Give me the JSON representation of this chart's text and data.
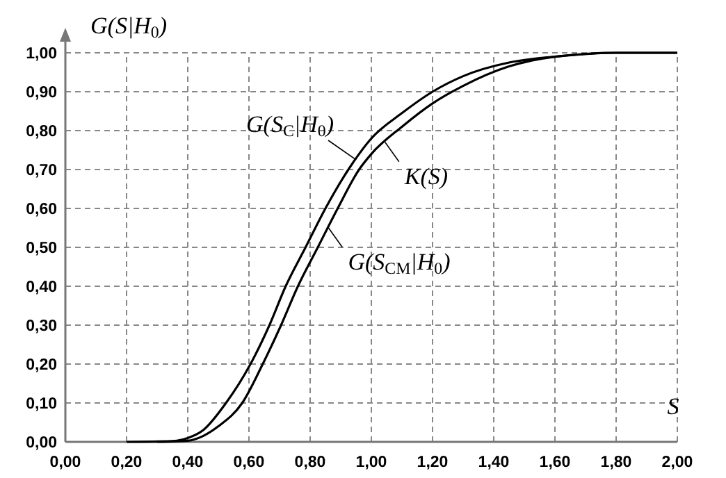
{
  "chart_data": {
    "type": "line",
    "xlabel": "S",
    "ylabel": "G(S|H$_{0}$)",
    "xlim": [
      0,
      2
    ],
    "ylim": [
      0,
      1
    ],
    "xticks": [
      {
        "value": 0,
        "label": "0,00"
      },
      {
        "value": 0.2,
        "label": "0,20"
      },
      {
        "value": 0.4,
        "label": "0,40"
      },
      {
        "value": 0.6,
        "label": "0,60"
      },
      {
        "value": 0.8,
        "label": "0,80"
      },
      {
        "value": 1,
        "label": "1,00"
      },
      {
        "value": 1.2,
        "label": "1,20"
      },
      {
        "value": 1.4,
        "label": "1,40"
      },
      {
        "value": 1.6,
        "label": "1,60"
      },
      {
        "value": 1.8,
        "label": "1,80"
      },
      {
        "value": 2,
        "label": "2,00"
      }
    ],
    "yticks": [
      {
        "value": 0,
        "label": "0,00"
      },
      {
        "value": 0.1,
        "label": "0,10"
      },
      {
        "value": 0.2,
        "label": "0,20"
      },
      {
        "value": 0.3,
        "label": "0,30"
      },
      {
        "value": 0.4,
        "label": "0,40"
      },
      {
        "value": 0.5,
        "label": "0,50"
      },
      {
        "value": 0.6,
        "label": "0,60"
      },
      {
        "value": 0.7,
        "label": "0,70"
      },
      {
        "value": 0.8,
        "label": "0,80"
      },
      {
        "value": 0.9,
        "label": "0,90"
      },
      {
        "value": 1,
        "label": "1,00"
      }
    ],
    "grid": true,
    "marker": "none",
    "line_style": "solid",
    "series": [
      {
        "color": "#000000",
        "x": [
          0.2,
          0.35,
          0.4,
          0.45,
          0.525,
          0.605,
          0.667,
          0.72,
          0.785,
          0.85,
          0.925,
          1.0,
          1.1,
          1.2,
          1.3,
          1.45,
          1.6,
          1.8,
          2.0
        ],
        "values": [
          0,
          0.002,
          0.01,
          0.03,
          0.1,
          0.2,
          0.3,
          0.4,
          0.5,
          0.6,
          0.7,
          0.78,
          0.845,
          0.9,
          0.94,
          0.975,
          0.99,
          1,
          1
        ]
      },
      {
        "color": "#000000",
        "x": [
          0.3,
          0.4,
          0.45,
          0.5,
          0.578,
          0.645,
          0.705,
          0.76,
          0.825,
          0.89,
          0.96,
          1.0,
          1.1,
          1.2,
          1.3,
          1.45,
          1.6,
          1.8,
          2.0
        ],
        "values": [
          0,
          0.003,
          0.015,
          0.04,
          0.1,
          0.2,
          0.3,
          0.4,
          0.5,
          0.6,
          0.7,
          0.74,
          0.81,
          0.87,
          0.915,
          0.965,
          0.99,
          1,
          1
        ]
      }
    ],
    "annotations": [
      {
        "text": "G(S$_{C}$|H$_{0}$)",
        "x": 0.95,
        "y": 0.725
      },
      {
        "text": "K(S)",
        "x": 1.045,
        "y": 0.77
      },
      {
        "text": "G(S$_{CM}$|H$_{0}$)",
        "x": 0.86,
        "y": 0.55
      }
    ]
  }
}
